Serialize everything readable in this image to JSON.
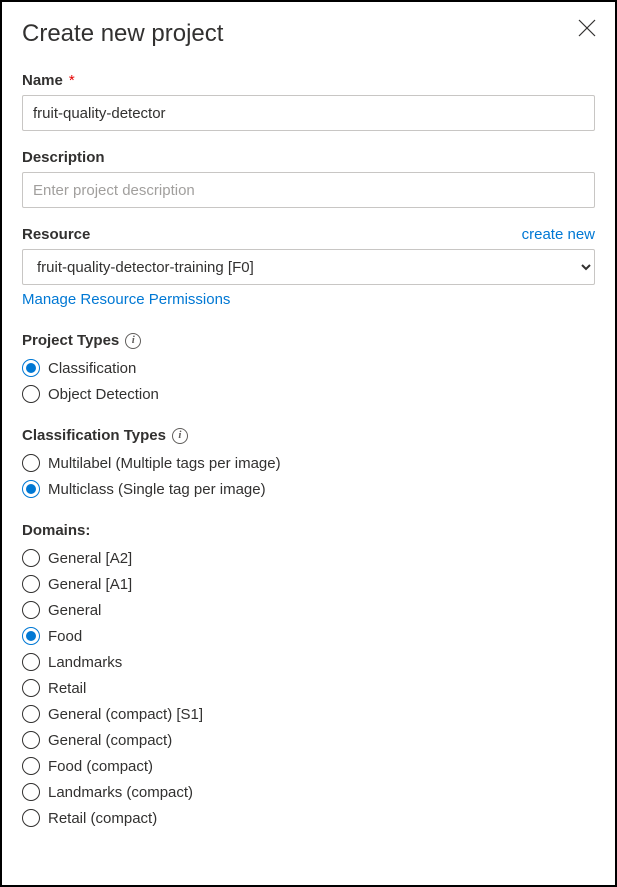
{
  "dialog": {
    "title": "Create new project"
  },
  "name": {
    "label": "Name",
    "value": "fruit-quality-detector"
  },
  "description": {
    "label": "Description",
    "placeholder": "Enter project description",
    "value": ""
  },
  "resource": {
    "label": "Resource",
    "createNewLabel": "create new",
    "selected": "fruit-quality-detector-training [F0]",
    "manageLink": "Manage Resource Permissions"
  },
  "projectTypes": {
    "label": "Project Types",
    "options": [
      {
        "label": "Classification",
        "selected": true
      },
      {
        "label": "Object Detection",
        "selected": false
      }
    ]
  },
  "classificationTypes": {
    "label": "Classification Types",
    "options": [
      {
        "label": "Multilabel (Multiple tags per image)",
        "selected": false
      },
      {
        "label": "Multiclass (Single tag per image)",
        "selected": true
      }
    ]
  },
  "domains": {
    "label": "Domains:",
    "options": [
      {
        "label": "General [A2]",
        "selected": false
      },
      {
        "label": "General [A1]",
        "selected": false
      },
      {
        "label": "General",
        "selected": false
      },
      {
        "label": "Food",
        "selected": true
      },
      {
        "label": "Landmarks",
        "selected": false
      },
      {
        "label": "Retail",
        "selected": false
      },
      {
        "label": "General (compact) [S1]",
        "selected": false
      },
      {
        "label": "General (compact)",
        "selected": false
      },
      {
        "label": "Food (compact)",
        "selected": false
      },
      {
        "label": "Landmarks (compact)",
        "selected": false
      },
      {
        "label": "Retail (compact)",
        "selected": false
      }
    ]
  },
  "colors": {
    "link": "#0078d4",
    "text": "#323130",
    "border": "#c8c6c4",
    "required": "#e50000"
  }
}
